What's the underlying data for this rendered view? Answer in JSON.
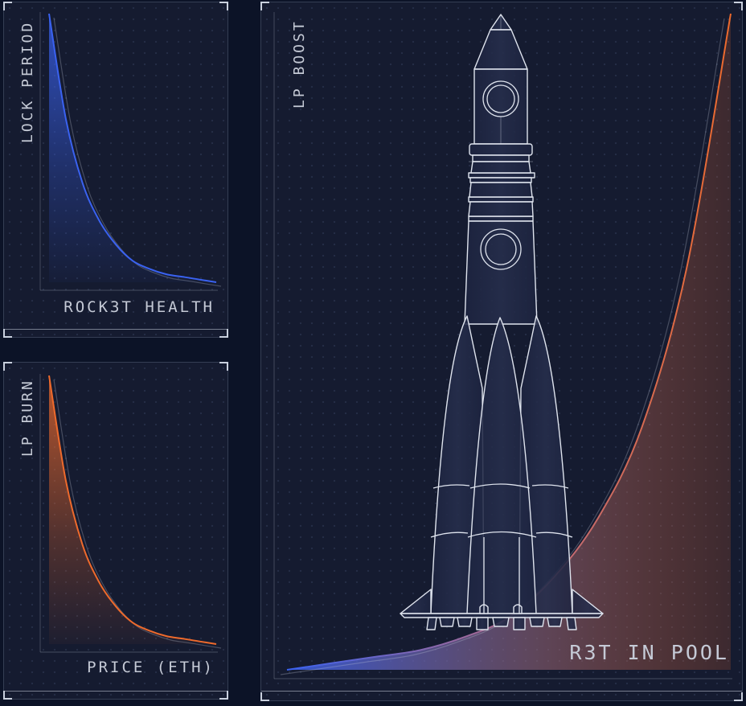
{
  "chart_data": [
    {
      "type": "area",
      "xlabel": "ROCK3T HEALTH",
      "ylabel": "LOCK PERIOD",
      "color": "#3a62f0",
      "x": [
        0,
        0.1,
        0.2,
        0.3,
        0.4,
        0.5,
        0.6,
        0.7,
        0.8,
        0.9,
        1.0
      ],
      "y": [
        1.0,
        0.61,
        0.37,
        0.23,
        0.14,
        0.08,
        0.05,
        0.03,
        0.02,
        0.01,
        0.0
      ]
    },
    {
      "type": "area",
      "xlabel": "PRICE (ETH)",
      "ylabel": "LP BURN",
      "color": "#ee6a2c",
      "x": [
        0,
        0.1,
        0.2,
        0.3,
        0.4,
        0.5,
        0.6,
        0.7,
        0.8,
        0.9,
        1.0
      ],
      "y": [
        1.0,
        0.61,
        0.37,
        0.23,
        0.14,
        0.08,
        0.05,
        0.03,
        0.02,
        0.01,
        0.0
      ]
    },
    {
      "type": "area",
      "xlabel": "R3T IN POOL",
      "ylabel": "LP BOOST",
      "colors": [
        "#3a62f0",
        "#ee6a2c"
      ],
      "x": [
        0,
        0.1,
        0.2,
        0.3,
        0.4,
        0.5,
        0.6,
        0.7,
        0.8,
        0.9,
        1.0
      ],
      "y": [
        0.0,
        0.01,
        0.02,
        0.03,
        0.05,
        0.08,
        0.14,
        0.23,
        0.37,
        0.61,
        1.0
      ]
    }
  ],
  "illustration": {
    "icon": "rocket-icon"
  },
  "colors": {
    "background": "#0c1327",
    "panel": "#151b30",
    "blue": "#3a62f0",
    "orange": "#ee6a2c",
    "outline": "#dfe4ee"
  }
}
